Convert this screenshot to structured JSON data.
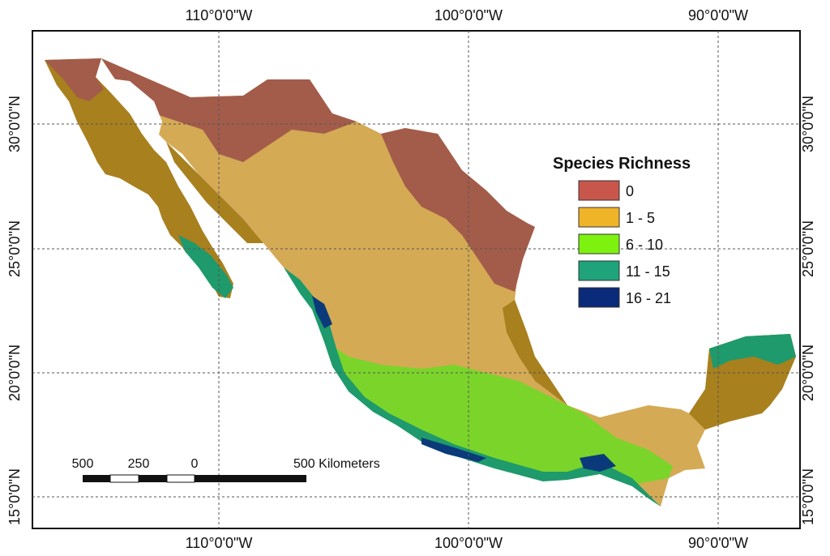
{
  "graticule": {
    "longitudes": [
      "110°0'0\"W",
      "100°0'0\"W",
      "90°0'0\"W"
    ],
    "latitudes": [
      "30°0'0\"N",
      "25°0'0\"N",
      "20°0'0\"N",
      "15°0'0\"N"
    ]
  },
  "legend": {
    "title": "Species Richness",
    "classes": [
      {
        "label": "0",
        "color": "#c8564a"
      },
      {
        "label": "1 - 5",
        "color": "#f0b429"
      },
      {
        "label": "6 - 10",
        "color": "#7ef20f"
      },
      {
        "label": "11 - 15",
        "color": "#1ea37b"
      },
      {
        "label": "16 - 21",
        "color": "#0a2a7a"
      }
    ]
  },
  "scale_bar": {
    "labels": [
      "500",
      "250",
      "0",
      "500 Kilometers"
    ]
  },
  "colors": {
    "arid_north": "#a35c4a",
    "plateau": "#d4aa55",
    "lowland": "#a8801e",
    "green_belt": "#7bd42a",
    "teal_coast": "#1e9a6c",
    "deep_coast": "#0a3a7a",
    "frame": "#111111",
    "grid": "#555555"
  }
}
